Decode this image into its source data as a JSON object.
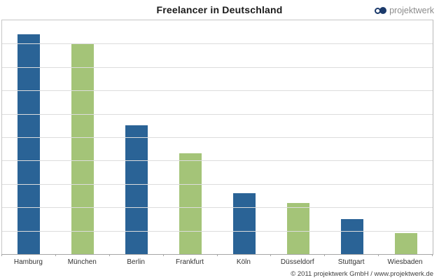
{
  "header": {
    "title": "Freelancer in Deutschland",
    "logo": {
      "text": "projektwerk",
      "icon": "double-circle-logo",
      "icon_color": "#1b3a6b",
      "text_color": "#8c8c8c"
    }
  },
  "footer": {
    "copyright": "© 2011 projektwerk GmbH / www.projektwerk.de"
  },
  "chart_data": {
    "type": "bar",
    "title": "Freelancer in Deutschland",
    "categories": [
      "Hamburg",
      "München",
      "Berlin",
      "Frankfurt",
      "Köln",
      "Düsseldorf",
      "Stuttgart",
      "Wiesbaden"
    ],
    "values": [
      9.4,
      9.0,
      5.5,
      4.3,
      2.6,
      2.2,
      1.5,
      0.9
    ],
    "xlabel": "",
    "ylabel": "",
    "ylim": [
      0,
      10
    ],
    "y_axis_labels_visible": false,
    "gridline_interval": 1,
    "grid": "horizontal",
    "legend_position": "none",
    "bar_color_blue": "#2a6396",
    "bar_color_green": "#a4c478",
    "bar_color_pattern": "alternating blue/green",
    "gridline_color": "#dcdcdc",
    "axis_color": "#a6a6a6"
  }
}
